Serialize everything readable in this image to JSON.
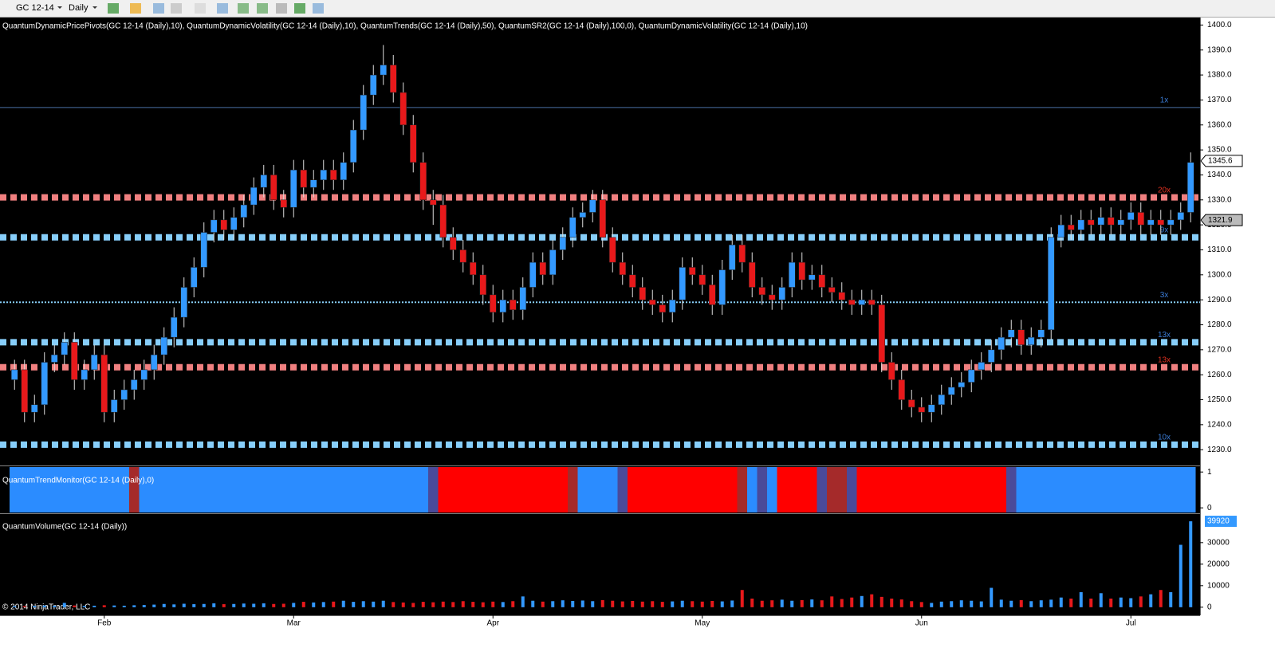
{
  "toolbar": {
    "instrument": "GC 12-14",
    "period": "Daily"
  },
  "chart_data": {
    "type": "candlestick",
    "indicators": "QuantumDynamicPricePivots(GC 12-14 (Daily),10), QuantumDynamicVolatility(GC 12-14 (Daily),10), QuantumTrends(GC 12-14 (Daily),50), QuantumSR2(GC 12-14 (Daily),100,0), QuantumDynamicVolatility(GC 12-14 (Daily),10)",
    "up_color": "#3399ff",
    "down_color": "#e8191b",
    "categories": [
      null,
      null,
      null,
      null,
      null,
      null,
      null,
      null,
      null,
      "Feb",
      null,
      null,
      null,
      null,
      null,
      null,
      null,
      null,
      null,
      null,
      null,
      null,
      null,
      null,
      null,
      null,
      null,
      null,
      "Mar",
      null,
      null,
      null,
      null,
      null,
      null,
      null,
      null,
      null,
      null,
      null,
      null,
      null,
      null,
      null,
      null,
      null,
      null,
      null,
      "Apr",
      null,
      null,
      null,
      null,
      null,
      null,
      null,
      null,
      null,
      null,
      null,
      null,
      null,
      null,
      null,
      null,
      null,
      null,
      null,
      null,
      "May",
      null,
      null,
      null,
      null,
      null,
      null,
      null,
      null,
      null,
      null,
      null,
      null,
      null,
      null,
      null,
      null,
      null,
      null,
      null,
      null,
      null,
      "Jun",
      null,
      null,
      null,
      null,
      null,
      null,
      null,
      null,
      null,
      null,
      null,
      null,
      null,
      null,
      null,
      null,
      null,
      null,
      null,
      null,
      "Jul",
      null,
      null,
      null,
      null,
      null,
      null
    ],
    "open": [
      1258,
      1262,
      1245,
      1248,
      1265,
      1268,
      1273,
      1258,
      1262,
      1268,
      1245,
      1250,
      1254,
      1258,
      1262,
      1268,
      1275,
      1283,
      1295,
      1303,
      1317,
      1322,
      1318,
      1323,
      1328,
      1335,
      1340,
      1330,
      1327,
      1342,
      1335,
      1338,
      1342,
      1338,
      1345,
      1358,
      1372,
      1380,
      1384,
      1373,
      1360,
      1345,
      1330,
      1328,
      1315,
      1310,
      1305,
      1300,
      1292,
      1285,
      1290,
      1286,
      1295,
      1305,
      1300,
      1310,
      1315,
      1323,
      1325,
      1330,
      1315,
      1305,
      1300,
      1295,
      1290,
      1288,
      1285,
      1290,
      1303,
      1300,
      1296,
      1288,
      1302,
      1312,
      1305,
      1295,
      1292,
      1290,
      1295,
      1305,
      1298,
      1300,
      1295,
      1293,
      1290,
      1288,
      1290,
      1288,
      1265,
      1258,
      1250,
      1247,
      1245,
      1248,
      1252,
      1255,
      1257,
      1262,
      1265,
      1270,
      1275,
      1278,
      1272,
      1275,
      1278,
      1315,
      1320,
      1318,
      1322,
      1320,
      1323,
      1320,
      1322,
      1325,
      1320,
      1322,
      1320,
      1322,
      1325
    ],
    "high": [
      1266,
      1266,
      1252,
      1269,
      1272,
      1277,
      1277,
      1266,
      1272,
      1272,
      1254,
      1258,
      1262,
      1266,
      1272,
      1279,
      1287,
      1299,
      1307,
      1321,
      1326,
      1326,
      1327,
      1332,
      1339,
      1344,
      1344,
      1334,
      1346,
      1346,
      1342,
      1346,
      1346,
      1349,
      1362,
      1376,
      1384,
      1392,
      1388,
      1377,
      1364,
      1349,
      1334,
      1332,
      1319,
      1314,
      1309,
      1304,
      1296,
      1294,
      1294,
      1299,
      1309,
      1309,
      1314,
      1319,
      1327,
      1329,
      1334,
      1334,
      1319,
      1309,
      1304,
      1299,
      1294,
      1292,
      1294,
      1307,
      1307,
      1304,
      1300,
      1306,
      1316,
      1316,
      1309,
      1299,
      1296,
      1299,
      1309,
      1309,
      1304,
      1304,
      1299,
      1297,
      1294,
      1294,
      1294,
      1292,
      1269,
      1262,
      1254,
      1251,
      1252,
      1256,
      1259,
      1261,
      1266,
      1269,
      1274,
      1279,
      1282,
      1282,
      1279,
      1282,
      1319,
      1324,
      1324,
      1326,
      1326,
      1327,
      1327,
      1326,
      1329,
      1329,
      1326,
      1326,
      1326,
      1329,
      1349
    ],
    "low": [
      1254,
      1241,
      1241,
      1244,
      1261,
      1264,
      1254,
      1254,
      1258,
      1241,
      1241,
      1246,
      1250,
      1254,
      1258,
      1264,
      1271,
      1279,
      1291,
      1299,
      1313,
      1314,
      1314,
      1319,
      1324,
      1331,
      1326,
      1323,
      1323,
      1331,
      1331,
      1334,
      1334,
      1334,
      1341,
      1354,
      1368,
      1376,
      1369,
      1356,
      1341,
      1326,
      1320,
      1311,
      1306,
      1301,
      1296,
      1288,
      1281,
      1281,
      1282,
      1282,
      1291,
      1296,
      1296,
      1306,
      1311,
      1319,
      1321,
      1311,
      1301,
      1296,
      1291,
      1286,
      1284,
      1281,
      1281,
      1286,
      1296,
      1292,
      1284,
      1284,
      1298,
      1301,
      1291,
      1288,
      1286,
      1286,
      1291,
      1294,
      1294,
      1291,
      1289,
      1286,
      1284,
      1284,
      1284,
      1261,
      1254,
      1246,
      1243,
      1241,
      1241,
      1244,
      1248,
      1251,
      1253,
      1258,
      1261,
      1266,
      1271,
      1268,
      1268,
      1271,
      1274,
      1311,
      1314,
      1314,
      1316,
      1316,
      1316,
      1316,
      1318,
      1316,
      1316,
      1316,
      1316,
      1318,
      1321
    ],
    "close": [
      1262,
      1245,
      1248,
      1265,
      1268,
      1273,
      1258,
      1262,
      1268,
      1245,
      1250,
      1254,
      1258,
      1262,
      1268,
      1275,
      1283,
      1295,
      1303,
      1317,
      1322,
      1318,
      1323,
      1328,
      1335,
      1340,
      1330,
      1327,
      1342,
      1335,
      1338,
      1342,
      1338,
      1345,
      1358,
      1372,
      1380,
      1384,
      1373,
      1360,
      1345,
      1330,
      1328,
      1315,
      1310,
      1305,
      1300,
      1292,
      1285,
      1290,
      1286,
      1295,
      1305,
      1300,
      1310,
      1315,
      1323,
      1325,
      1330,
      1315,
      1305,
      1300,
      1295,
      1290,
      1288,
      1285,
      1290,
      1303,
      1300,
      1296,
      1288,
      1302,
      1312,
      1305,
      1295,
      1292,
      1290,
      1295,
      1305,
      1298,
      1300,
      1295,
      1293,
      1290,
      1288,
      1290,
      1288,
      1265,
      1258,
      1250,
      1247,
      1245,
      1248,
      1252,
      1255,
      1257,
      1262,
      1265,
      1270,
      1275,
      1278,
      1272,
      1275,
      1278,
      1315,
      1320,
      1318,
      1322,
      1320,
      1323,
      1320,
      1322,
      1325,
      1320,
      1322,
      1320,
      1322,
      1325,
      1345
    ],
    "ylim": [
      1224,
      1403
    ],
    "yticks": [
      {
        "value": 1230,
        "label": "1230.0"
      },
      {
        "value": 1240,
        "label": "1240.0"
      },
      {
        "value": 1250,
        "label": "1250.0"
      },
      {
        "value": 1260,
        "label": "1260.0"
      },
      {
        "value": 1270,
        "label": "1270.0"
      },
      {
        "value": 1280,
        "label": "1280.0"
      },
      {
        "value": 1290,
        "label": "1290.0"
      },
      {
        "value": 1300,
        "label": "1300.0"
      },
      {
        "value": 1310,
        "label": "1310.0"
      },
      {
        "value": 1320,
        "label": "1320.0"
      },
      {
        "value": 1330,
        "label": "1330.0"
      },
      {
        "value": 1340,
        "label": "1340.0"
      },
      {
        "value": 1350,
        "label": "1350.0"
      },
      {
        "value": 1360,
        "label": "1360.0"
      },
      {
        "value": 1370,
        "label": "1370.0"
      },
      {
        "value": 1380,
        "label": "1380.0"
      },
      {
        "value": 1390,
        "label": "1390.0"
      },
      {
        "value": 1400,
        "label": "1400.0"
      }
    ],
    "levels": [
      {
        "value": 1367,
        "style": "solid",
        "color": "#4a6fa5",
        "label": "1x",
        "label_color": "#3a7bd5"
      },
      {
        "value": 1331,
        "style": "squares",
        "color": "#f08080",
        "label": "20x",
        "label_color": "#e03020"
      },
      {
        "value": 1315,
        "style": "squares",
        "color": "#87cefa",
        "label": "9x",
        "label_color": "#3a7bd5"
      },
      {
        "value": 1289,
        "style": "dots",
        "color": "#87cefa",
        "label": "3x",
        "label_color": "#3a7bd5"
      },
      {
        "value": 1273,
        "style": "squares",
        "color": "#87cefa",
        "label": "13x",
        "label_color": "#3a7bd5"
      },
      {
        "value": 1263,
        "style": "squares",
        "color": "#f08080",
        "label": "13x",
        "label_color": "#e03020"
      },
      {
        "value": 1232,
        "style": "squares",
        "color": "#87cefa",
        "label": "10x",
        "label_color": "#3a7bd5"
      }
    ],
    "price_markers": [
      1345.6,
      1321.9
    ],
    "trend_monitor": {
      "title": "QuantumTrendMonitor(GC 12-14 (Daily),0)",
      "ylim": [
        -0.13,
        1.16
      ],
      "yticks": [
        0,
        1
      ],
      "segments": [
        {
          "color": "#2b8cff",
          "bars": 12
        },
        {
          "color": "#a52a2a",
          "bars": 1
        },
        {
          "color": "#2b8cff",
          "bars": 29
        },
        {
          "color": "#4a4a9a",
          "bars": 1
        },
        {
          "color": "#ff0000",
          "bars": 13
        },
        {
          "color": "#a52a2a",
          "bars": 1
        },
        {
          "color": "#2b8cff",
          "bars": 4
        },
        {
          "color": "#4a4a9a",
          "bars": 1
        },
        {
          "color": "#ff0000",
          "bars": 11
        },
        {
          "color": "#a52a2a",
          "bars": 1
        },
        {
          "color": "#2b8cff",
          "bars": 1
        },
        {
          "color": "#4a4a9a",
          "bars": 1
        },
        {
          "color": "#2b8cff",
          "bars": 1
        },
        {
          "color": "#ff0000",
          "bars": 4
        },
        {
          "color": "#4a4a9a",
          "bars": 1
        },
        {
          "color": "#a52a2a",
          "bars": 2
        },
        {
          "color": "#4a4a9a",
          "bars": 1
        },
        {
          "color": "#ff0000",
          "bars": 15
        },
        {
          "color": "#4a4a9a",
          "bars": 1
        },
        {
          "color": "#2b8cff",
          "bars": 18
        }
      ]
    },
    "volume": {
      "title": "QuantumVolume(GC 12-14 (Daily))",
      "ylim": [
        -3400,
        42900
      ],
      "yticks": [
        0,
        10000,
        20000,
        30000
      ],
      "values": [
        500,
        500,
        600,
        800,
        700,
        2000,
        800,
        600,
        700,
        900,
        800,
        700,
        900,
        1000,
        1200,
        1500,
        1300,
        1600,
        1400,
        1500,
        1800,
        1400,
        1500,
        1700,
        1600,
        1800,
        1500,
        1600,
        2000,
        2500,
        2200,
        2400,
        2600,
        3000,
        2500,
        2800,
        2600,
        3000,
        2400,
        2200,
        2000,
        2500,
        2300,
        2600,
        2400,
        2800,
        2500,
        2300,
        2600,
        2400,
        2800,
        5000,
        3000,
        2600,
        2800,
        3200,
        2900,
        3100,
        2800,
        3300,
        3000,
        2700,
        2900,
        2600,
        2800,
        2500,
        2700,
        3000,
        2800,
        2600,
        2900,
        2700,
        3100,
        8000,
        4000,
        3000,
        3200,
        3500,
        3000,
        3300,
        3600,
        3200,
        5000,
        3800,
        4500,
        5200,
        6000,
        4800,
        4000,
        3600,
        2800,
        2400,
        2000,
        2600,
        2800,
        3200,
        3000,
        2700,
        9000,
        3500,
        3000,
        3300,
        2800,
        3200,
        3500,
        4500,
        4000,
        7000,
        4000,
        6500,
        4000,
        4500,
        4200,
        5000,
        6000,
        8000,
        7000,
        29000,
        39920
      ]
    },
    "copyright": "© 2014 NinjaTrader, LLC"
  }
}
